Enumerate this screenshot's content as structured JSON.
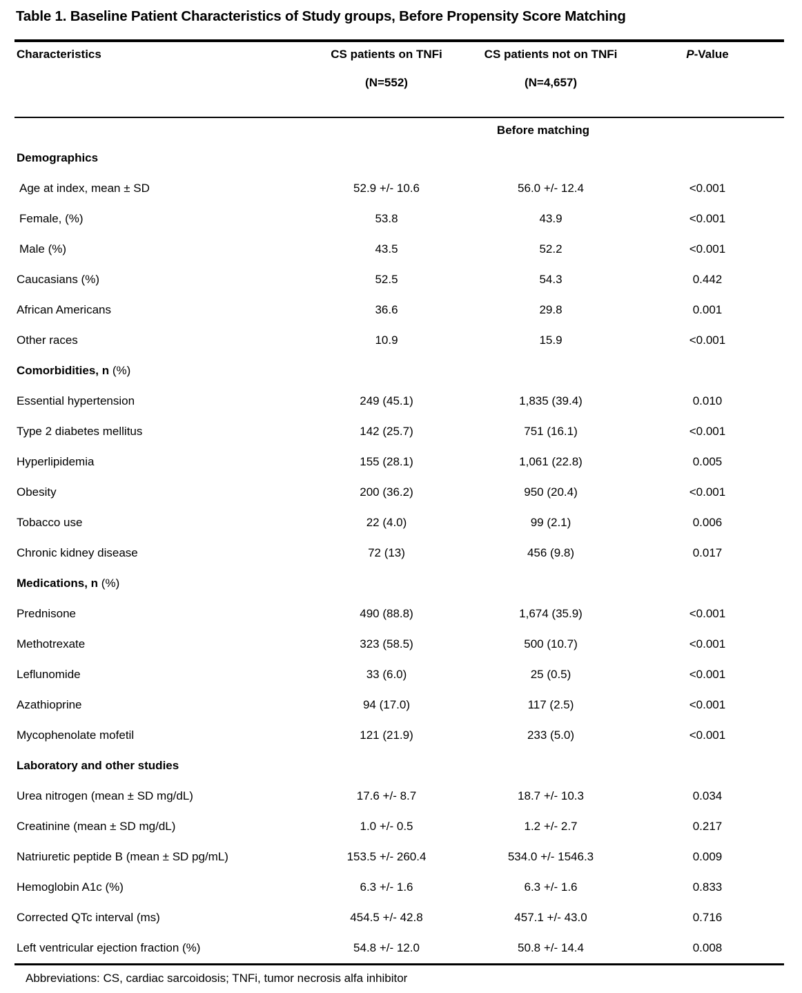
{
  "title": "Table 1. Baseline Patient Characteristics of Study groups, Before Propensity Score Matching",
  "header": {
    "characteristics": "Characteristics",
    "group1_name": "CS patients on TNFi",
    "group1_n": "(N=552)",
    "group2_name": "CS patients not on TNFi",
    "group2_n": "(N=4,657)",
    "pvalue_italic": "P",
    "pvalue_rest": "-Value",
    "span_label": "Before matching"
  },
  "rows": [
    {
      "type": "section",
      "label": "Demographics",
      "suffix": ""
    },
    {
      "type": "data",
      "label": "Age at index, mean ± SD",
      "tnfi": "52.9 +/- 10.6",
      "no_tnfi": "56.0 +/- 12.4",
      "p": "<0.001"
    },
    {
      "type": "data",
      "label": "Female, (%)",
      "tnfi": "53.8",
      "no_tnfi": "43.9",
      "p": "<0.001"
    },
    {
      "type": "data",
      "label": "Male (%)",
      "tnfi": "43.5",
      "no_tnfi": "52.2",
      "p": "<0.001"
    },
    {
      "type": "data",
      "label": "Caucasians (%)",
      "tnfi": "52.5",
      "no_tnfi": "54.3",
      "p": "0.442"
    },
    {
      "type": "data",
      "label": "African Americans",
      "tnfi": "36.6",
      "no_tnfi": "29.8",
      "p": "0.001"
    },
    {
      "type": "data",
      "label": "Other races",
      "tnfi": "10.9",
      "no_tnfi": "15.9",
      "p": "<0.001"
    },
    {
      "type": "section",
      "label": "Comorbidities, n",
      "suffix": " (%)"
    },
    {
      "type": "data",
      "label": "Essential hypertension",
      "tnfi": "249 (45.1)",
      "no_tnfi": "1,835 (39.4)",
      "p": "0.010"
    },
    {
      "type": "data",
      "label": "Type 2 diabetes mellitus",
      "tnfi": "142 (25.7)",
      "no_tnfi": "751 (16.1)",
      "p": "<0.001"
    },
    {
      "type": "data",
      "label": "Hyperlipidemia",
      "tnfi": "155 (28.1)",
      "no_tnfi": "1,061 (22.8)",
      "p": "0.005"
    },
    {
      "type": "data",
      "label": "Obesity",
      "tnfi": "200 (36.2)",
      "no_tnfi": "950 (20.4)",
      "p": "<0.001"
    },
    {
      "type": "data",
      "label": "Tobacco use",
      "tnfi": "22 (4.0)",
      "no_tnfi": "99 (2.1)",
      "p": "0.006"
    },
    {
      "type": "data",
      "label": "Chronic kidney disease",
      "tnfi": "72 (13)",
      "no_tnfi": "456 (9.8)",
      "p": "0.017"
    },
    {
      "type": "section",
      "label": "Medications, n",
      "suffix": " (%)"
    },
    {
      "type": "data",
      "label": "Prednisone",
      "tnfi": "490 (88.8)",
      "no_tnfi": "1,674 (35.9)",
      "p": "<0.001"
    },
    {
      "type": "data",
      "label": "Methotrexate",
      "tnfi": "323 (58.5)",
      "no_tnfi": "500 (10.7)",
      "p": "<0.001"
    },
    {
      "type": "data",
      "label": "Leflunomide",
      "tnfi": "33 (6.0)",
      "no_tnfi": "25 (0.5)",
      "p": "<0.001"
    },
    {
      "type": "data",
      "label": "Azathioprine",
      "tnfi": "94 (17.0)",
      "no_tnfi": "117 (2.5)",
      "p": "<0.001"
    },
    {
      "type": "data",
      "label": "Mycophenolate mofetil",
      "tnfi": "121 (21.9)",
      "no_tnfi": "233 (5.0)",
      "p": "<0.001"
    },
    {
      "type": "section",
      "label": "Laboratory and other studies",
      "suffix": ""
    },
    {
      "type": "data",
      "label": "Urea nitrogen (mean ± SD mg/dL)",
      "tnfi": "17.6 +/- 8.7",
      "no_tnfi": "18.7 +/- 10.3",
      "p": "0.034"
    },
    {
      "type": "data",
      "label": "Creatinine (mean ± SD mg/dL)",
      "tnfi": "1.0 +/- 0.5",
      "no_tnfi": "1.2 +/- 2.7",
      "p": "0.217"
    },
    {
      "type": "data",
      "label": "Natriuretic peptide B (mean ± SD pg/mL)",
      "tnfi": "153.5 +/- 260.4",
      "no_tnfi": "534.0 +/- 1546.3",
      "p": "0.009"
    },
    {
      "type": "data",
      "label": "Hemoglobin A1c (%)",
      "tnfi": "6.3 +/- 1.6",
      "no_tnfi": "6.3 +/- 1.6",
      "p": "0.833"
    },
    {
      "type": "data",
      "label": "Corrected QTc interval (ms)",
      "tnfi": "454.5 +/- 42.8",
      "no_tnfi": "457.1 +/- 43.0",
      "p": "0.716"
    },
    {
      "type": "data",
      "label": "Left ventricular ejection fraction (%)",
      "tnfi": "54.8 +/- 12.0",
      "no_tnfi": "50.8 +/- 14.4",
      "p": "0.008"
    }
  ],
  "footnote": "Abbreviations: CS, cardiac sarcoidosis; TNFi, tumor necrosis alfa inhibitor",
  "colors": {
    "background": "#ffffff",
    "text": "#000000",
    "rule": "#000000"
  }
}
